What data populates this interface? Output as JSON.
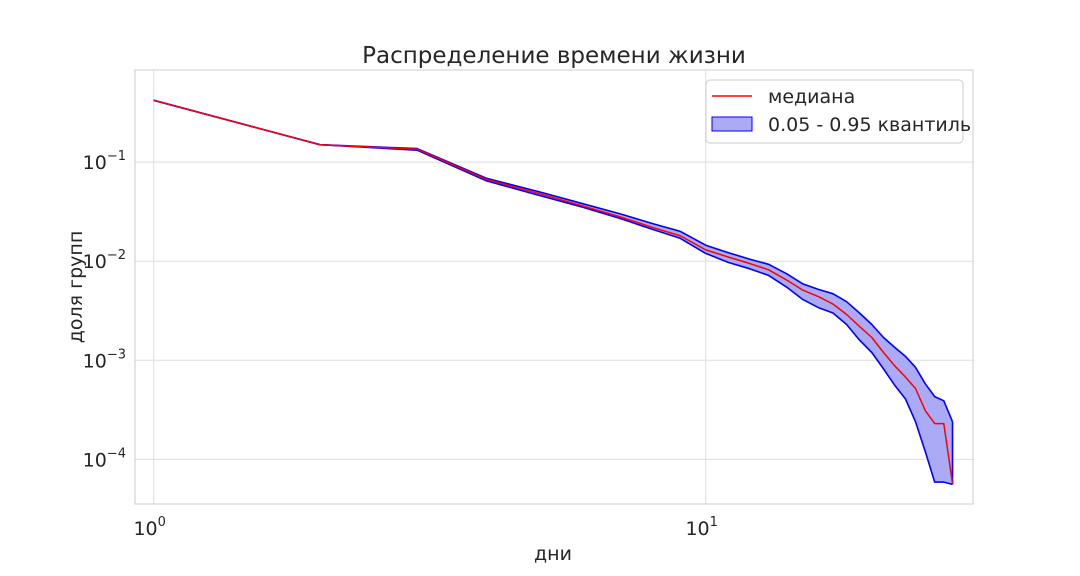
{
  "chart_data": {
    "type": "line",
    "title": "Распределение времени жизни",
    "xlabel": "дни",
    "ylabel": "доля групп",
    "xscale": "log",
    "yscale": "log",
    "xlim": [
      0.925,
      30.5
    ],
    "ylim": [
      3.55e-05,
      0.85
    ],
    "x_ticks": [
      {
        "value": 1,
        "base": "10",
        "exp": "0"
      },
      {
        "value": 10,
        "base": "10",
        "exp": "1"
      }
    ],
    "y_ticks": [
      {
        "value": 0.1,
        "base": "10",
        "exp": "−1"
      },
      {
        "value": 0.01,
        "base": "10",
        "exp": "−2"
      },
      {
        "value": 0.001,
        "base": "10",
        "exp": "−3"
      },
      {
        "value": 0.0001,
        "base": "10",
        "exp": "−4"
      }
    ],
    "grid": true,
    "legend_position": "top-right",
    "x": [
      1,
      2,
      3,
      4,
      5,
      6,
      7,
      8,
      9,
      10,
      11,
      12,
      13,
      14,
      15,
      16,
      17,
      18,
      19,
      20,
      21,
      22,
      23,
      24,
      25,
      26,
      27,
      28
    ],
    "series": [
      {
        "name": "медиана",
        "color": "#ff0000",
        "values": [
          0.42,
          0.15,
          0.135,
          0.067,
          0.048,
          0.036,
          0.028,
          0.022,
          0.018,
          0.013,
          0.011,
          0.0095,
          0.0082,
          0.0065,
          0.0051,
          0.0044,
          0.0037,
          0.0029,
          0.0022,
          0.0017,
          0.0012,
          0.00088,
          0.00068,
          0.00052,
          0.00031,
          0.00023,
          0.00023,
          5.7e-05
        ]
      }
    ],
    "band": {
      "name": "0.05 - 0.95 квантиль",
      "fill_color": "#aaaaf5",
      "edge_color": "#0000ff",
      "lower": [
        0.42,
        0.15,
        0.132,
        0.065,
        0.046,
        0.035,
        0.027,
        0.021,
        0.017,
        0.012,
        0.0097,
        0.0084,
        0.0072,
        0.0055,
        0.0041,
        0.0034,
        0.003,
        0.0023,
        0.0016,
        0.0012,
        0.00082,
        0.00056,
        0.00041,
        0.00024,
        0.00012,
        5.9e-05,
        5.9e-05,
        5.6e-05
      ],
      "upper": [
        0.42,
        0.15,
        0.137,
        0.069,
        0.05,
        0.038,
        0.03,
        0.024,
        0.02,
        0.0145,
        0.0122,
        0.0105,
        0.0093,
        0.0075,
        0.0059,
        0.0052,
        0.0047,
        0.0039,
        0.003,
        0.0023,
        0.0017,
        0.00135,
        0.0011,
        0.00085,
        0.00058,
        0.00043,
        0.00039,
        0.00024
      ]
    }
  }
}
